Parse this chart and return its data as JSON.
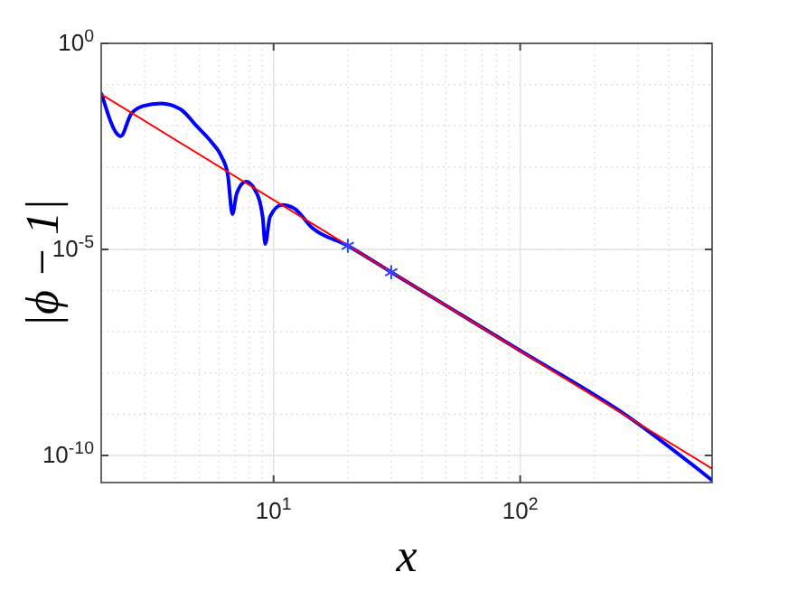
{
  "chart_data": {
    "type": "line",
    "xlabel": "x",
    "ylabel": "|ϕ − 1|",
    "log": "xy",
    "grid": true,
    "xlim": [
      2,
      600
    ],
    "ylim": [
      2.2e-11,
      1
    ],
    "xticks": [
      {
        "value": 10,
        "label": "10$^{1}$"
      },
      {
        "value": 100,
        "label": "10$^{2}$"
      }
    ],
    "yticks": [
      {
        "value": 1e-10,
        "label": "10$^{-10}$"
      },
      {
        "value": 1e-05,
        "label": "10$^{-5}$"
      },
      {
        "value": 1,
        "label": "10$^{0}$"
      }
    ],
    "series": [
      {
        "color": "#0000ff",
        "x": [
          2.01,
          2.4,
          2.64,
          2.95,
          3.5,
          4.2,
          4.9,
          5.6,
          6.15,
          6.52,
          6.81,
          7.09,
          7.72,
          8.4,
          9.03,
          9.25,
          9.67,
          10.8,
          12.1,
          14.3,
          20,
          30,
          100,
          270,
          600
        ],
        "values": [
          0.058,
          0.0056,
          0.019,
          0.03,
          0.035,
          0.025,
          0.0095,
          0.004,
          0.0018,
          0.00065,
          7.2e-05,
          0.00023,
          0.00044,
          0.00028,
          6.2e-05,
          1.35e-05,
          6.2e-05,
          0.00012,
          0.0001,
          3.4e-05,
          1.23e-05,
          2.8e-06,
          3.5e-08,
          9.3e-10,
          2.5e-11
        ]
      },
      {
        "color": "#ff0000",
        "x": [
          2,
          600
        ],
        "values": [
          0.058,
          4.8e-11
        ]
      },
      {
        "type": "scatter",
        "color": "#3344ff",
        "marker": "cross",
        "x": [
          20,
          30
        ],
        "values": [
          1.23e-05,
          2.8e-06
        ]
      }
    ]
  }
}
